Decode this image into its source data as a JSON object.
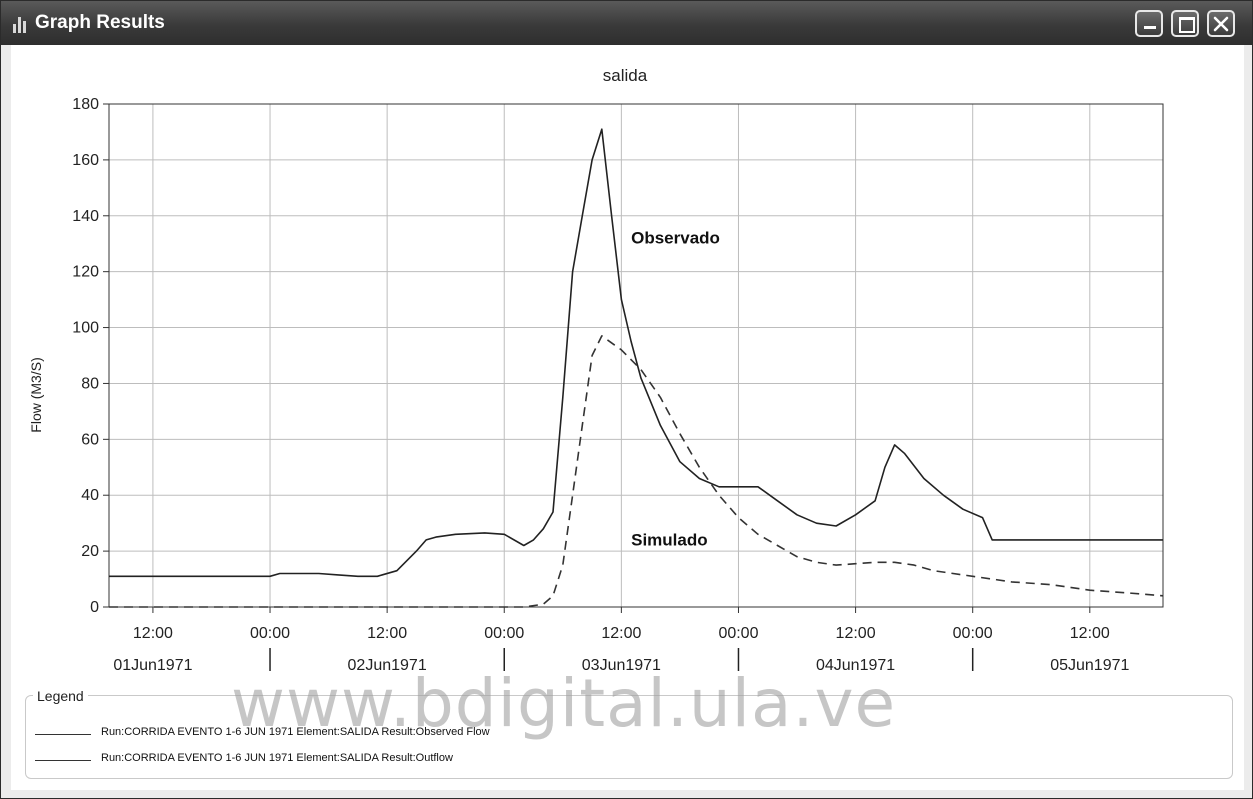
{
  "window": {
    "title": "Graph Results",
    "icon": "bar-chart-icon"
  },
  "title_bar_buttons": [
    "minimize-icon",
    "maximize-icon",
    "close-icon"
  ],
  "chart_data": {
    "type": "line",
    "title": "salida",
    "xlabel": "",
    "ylabel": "Flow (M3/S)",
    "ylim": [
      0,
      180
    ],
    "yticks": [
      0,
      20,
      40,
      60,
      80,
      100,
      120,
      140,
      160,
      180
    ],
    "x_unit": "hours from 01Jun1971 00:00",
    "xlim": [
      7.5,
      115.5
    ],
    "xticks": [
      {
        "x": 12,
        "label": "12:00"
      },
      {
        "x": 24,
        "label": "00:00"
      },
      {
        "x": 36,
        "label": "12:00"
      },
      {
        "x": 48,
        "label": "00:00"
      },
      {
        "x": 60,
        "label": "12:00"
      },
      {
        "x": 72,
        "label": "00:00"
      },
      {
        "x": 84,
        "label": "12:00"
      },
      {
        "x": 96,
        "label": "00:00"
      },
      {
        "x": 108,
        "label": "12:00"
      }
    ],
    "date_labels": [
      {
        "x": 12,
        "label": "01Jun1971"
      },
      {
        "x": 36,
        "label": "02Jun1971"
      },
      {
        "x": 60,
        "label": "03Jun1971"
      },
      {
        "x": 84,
        "label": "04Jun1971"
      },
      {
        "x": 108,
        "label": "05Jun1971"
      }
    ],
    "grid": true,
    "series": [
      {
        "name": "Run:CORRIDA EVENTO 1-6 JUN 1971 Element:SALIDA Result:Observed Flow",
        "style": "solid",
        "color": "#222222",
        "points": [
          [
            7.5,
            11
          ],
          [
            24,
            11
          ],
          [
            25,
            12
          ],
          [
            29,
            12
          ],
          [
            31,
            11.5
          ],
          [
            33,
            11
          ],
          [
            35,
            11
          ],
          [
            37,
            13
          ],
          [
            39,
            20
          ],
          [
            40,
            24
          ],
          [
            41,
            25
          ],
          [
            42,
            25.5
          ],
          [
            43,
            26
          ],
          [
            46,
            26.5
          ],
          [
            48,
            26
          ],
          [
            50,
            22
          ],
          [
            51,
            24
          ],
          [
            52,
            28
          ],
          [
            53,
            34
          ],
          [
            54,
            75
          ],
          [
            55,
            120
          ],
          [
            56,
            140
          ],
          [
            57,
            160
          ],
          [
            58,
            171
          ],
          [
            59,
            140
          ],
          [
            60,
            110
          ],
          [
            61,
            95
          ],
          [
            62,
            82
          ],
          [
            64,
            65
          ],
          [
            66,
            52
          ],
          [
            68,
            46
          ],
          [
            70,
            43
          ],
          [
            74,
            43
          ],
          [
            76,
            38
          ],
          [
            78,
            33
          ],
          [
            80,
            30
          ],
          [
            82,
            29
          ],
          [
            84,
            33
          ],
          [
            86,
            38
          ],
          [
            87,
            50
          ],
          [
            88,
            58
          ],
          [
            89,
            55
          ],
          [
            91,
            46
          ],
          [
            93,
            40
          ],
          [
            95,
            35
          ],
          [
            97,
            32
          ],
          [
            98,
            24
          ],
          [
            115.5,
            24
          ]
        ]
      },
      {
        "name": "Run:CORRIDA EVENTO 1-6 JUN 1971 Element:SALIDA Result:Outflow",
        "style": "dashed",
        "color": "#333333",
        "points": [
          [
            7.5,
            0
          ],
          [
            48,
            0
          ],
          [
            50,
            0
          ],
          [
            52,
            1
          ],
          [
            53,
            4
          ],
          [
            54,
            15
          ],
          [
            55,
            40
          ],
          [
            56,
            65
          ],
          [
            57,
            90
          ],
          [
            58,
            97
          ],
          [
            60,
            92
          ],
          [
            62,
            85
          ],
          [
            64,
            75
          ],
          [
            66,
            62
          ],
          [
            68,
            50
          ],
          [
            70,
            40
          ],
          [
            72,
            32
          ],
          [
            74,
            26
          ],
          [
            76,
            22
          ],
          [
            78,
            18
          ],
          [
            80,
            16
          ],
          [
            82,
            15
          ],
          [
            84,
            15.5
          ],
          [
            86,
            16
          ],
          [
            88,
            16
          ],
          [
            90,
            15
          ],
          [
            92,
            13
          ],
          [
            96,
            11
          ],
          [
            100,
            9
          ],
          [
            104,
            8
          ],
          [
            108,
            6
          ],
          [
            112,
            5
          ],
          [
            115.5,
            4
          ]
        ]
      }
    ],
    "annotations": [
      {
        "text": "Observado",
        "x": 61,
        "y": 130
      },
      {
        "text": "Simulado",
        "x": 61,
        "y": 22
      }
    ]
  },
  "legend": {
    "title": "Legend",
    "items": [
      "Run:CORRIDA EVENTO 1-6 JUN 1971 Element:SALIDA Result:Observed Flow",
      "Run:CORRIDA EVENTO 1-6 JUN 1971 Element:SALIDA Result:Outflow"
    ]
  },
  "watermark": "www.bdigital.ula.ve"
}
